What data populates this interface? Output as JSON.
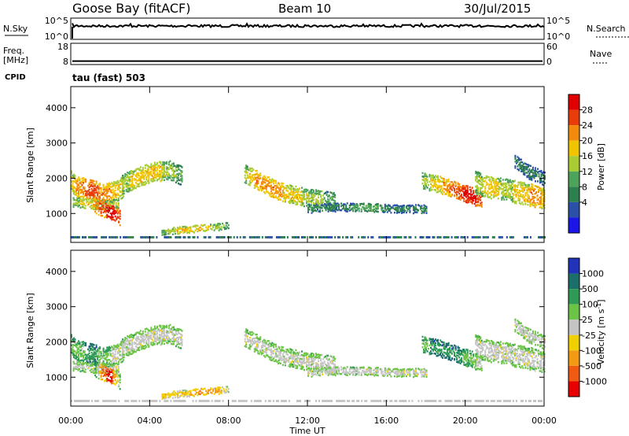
{
  "chart_data": {
    "type": "heatmap",
    "header": {
      "station": "Goose Bay (fitACF)",
      "beam": "Beam 10",
      "date": "30/Jul/2015"
    },
    "xlabel": "Time UT",
    "x_ticks": [
      "00:00",
      "04:00",
      "08:00",
      "12:00",
      "16:00",
      "20:00",
      "00:00"
    ],
    "x_range_hours": [
      0,
      24
    ],
    "noise_panel": {
      "left_label": "N.Sky",
      "right_label": "N.Search",
      "ticks": [
        "10^5",
        "10^0"
      ]
    },
    "freq_panel": {
      "left_label": "Freq.",
      "left_unit": "[MHz]",
      "left_ticks": [
        "18",
        "8"
      ],
      "right_label": "Nave",
      "right_ticks": [
        "60",
        "0"
      ],
      "freq_mhz": 10
    },
    "cpid": {
      "label": "CPID",
      "value": "tau (fast) 503"
    },
    "power_panel": {
      "ylabel": "Slant Range [km]",
      "y_ticks": [
        1000,
        2000,
        3000,
        4000
      ],
      "ylim": [
        180,
        4600
      ],
      "colorbar_label": "Power [dB]",
      "colorbar_ticks": [
        "28",
        "24",
        "20",
        "16",
        "12",
        "8",
        "4"
      ],
      "colors": [
        "#1a16e8",
        "#2a50a8",
        "#2e7f4e",
        "#4ea35a",
        "#a8cc32",
        "#f0c400",
        "#f28a0c",
        "#e83c0a",
        "#e00000"
      ]
    },
    "velocity_panel": {
      "ylabel": "Slant Range [km]",
      "y_ticks": [
        1000,
        2000,
        3000,
        4000
      ],
      "ylim": [
        180,
        4600
      ],
      "colorbar_label": "Velocity [m s",
      "colorbar_label_exp": "-1",
      "colorbar_label_close": "]",
      "colorbar_ticks": [
        "1000",
        "500",
        "100",
        "25",
        "-25",
        "-100",
        "-500",
        "-1000"
      ],
      "colors": [
        "#2233bb",
        "#1a6f6a",
        "#2f9a56",
        "#6cc447",
        "#c4c4c4",
        "#f0d000",
        "#f39a14",
        "#f05a12",
        "#e80000"
      ]
    },
    "echo_bands": [
      {
        "t": [
          0.0,
          0.4,
          1.0,
          1.7,
          2.3,
          2.7
        ],
        "r": [
          1950,
          1750,
          1700,
          1550,
          1650,
          1800
        ],
        "w": 280,
        "pw": [
          5,
          6,
          7,
          6,
          5,
          5
        ],
        "vc": [
          3,
          3,
          2,
          3,
          4,
          4
        ]
      },
      {
        "t": [
          0.1,
          0.8,
          1.6,
          2.4
        ],
        "r": [
          1350,
          1300,
          1250,
          1300
        ],
        "w": 120,
        "pw": [
          4,
          5,
          4,
          4
        ],
        "vc": [
          4,
          4,
          4,
          4
        ]
      },
      {
        "t": [
          1.2,
          1.6,
          2.0,
          2.5
        ],
        "r": [
          1250,
          1150,
          1050,
          900
        ],
        "w": 200,
        "pw": [
          6,
          7,
          8,
          7
        ],
        "vc": [
          2,
          7,
          8,
          3
        ]
      },
      {
        "t": [
          2.6,
          3.4,
          4.2,
          5.0,
          5.6
        ],
        "r": [
          1850,
          2050,
          2200,
          2250,
          2100
        ],
        "w": 260,
        "pw": [
          4,
          5,
          5,
          4,
          3
        ],
        "vc": [
          4,
          4,
          4,
          4,
          4
        ]
      },
      {
        "t": [
          4.6,
          5.5,
          6.5,
          7.5,
          8.0
        ],
        "r": [
          500,
          550,
          600,
          650,
          700
        ],
        "w": 80,
        "pw": [
          3,
          5,
          5,
          4,
          3
        ],
        "vc": [
          5,
          5,
          6,
          6,
          4
        ]
      },
      {
        "t": [
          8.8,
          9.5,
          10.3,
          11.2,
          12.2,
          13.4
        ],
        "r": [
          2150,
          1950,
          1700,
          1550,
          1450,
          1350
        ],
        "w": 240,
        "pw": [
          4,
          6,
          6,
          5,
          4,
          3
        ],
        "vc": [
          4,
          4,
          4,
          4,
          4,
          4
        ]
      },
      {
        "t": [
          12.0,
          13.5,
          15.0,
          16.5,
          18.0
        ],
        "r": [
          1150,
          1200,
          1200,
          1150,
          1150
        ],
        "w": 100,
        "pw": [
          2,
          2,
          3,
          2,
          2
        ],
        "vc": [
          4,
          4,
          4,
          4,
          4
        ]
      },
      {
        "t": [
          17.8,
          18.6,
          19.4,
          20.2,
          20.8
        ],
        "r": [
          1950,
          1850,
          1700,
          1550,
          1400
        ],
        "w": 220,
        "pw": [
          4,
          5,
          7,
          8,
          7
        ],
        "vc": [
          3,
          2,
          2,
          3,
          4
        ]
      },
      {
        "t": [
          20.5,
          21.3,
          22.0,
          22.8,
          23.6,
          24.0
        ],
        "r": [
          1900,
          1750,
          1700,
          1600,
          1500,
          1450
        ],
        "w": 300,
        "pw": [
          4,
          5,
          4,
          5,
          6,
          5
        ],
        "vc": [
          4,
          4,
          4,
          4,
          4,
          4
        ]
      },
      {
        "t": [
          22.5,
          23.2,
          24.0
        ],
        "r": [
          2500,
          2200,
          2000
        ],
        "w": 180,
        "pw": [
          2,
          2,
          2
        ],
        "vc": [
          4,
          4,
          4
        ]
      }
    ]
  }
}
